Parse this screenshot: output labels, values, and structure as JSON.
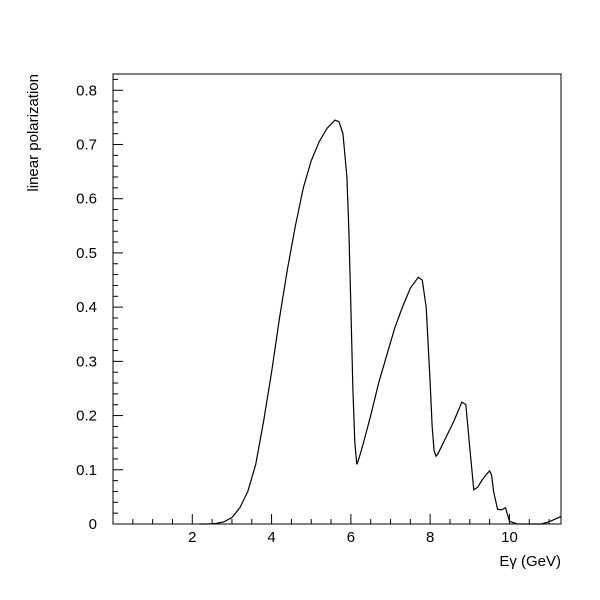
{
  "chart_data": {
    "type": "line",
    "xlabel": "Eγ (GeV)",
    "ylabel": "linear polarization",
    "xlim": [
      0,
      11.3
    ],
    "ylim": [
      0,
      0.83
    ],
    "x_ticks": [
      2,
      4,
      6,
      8,
      10
    ],
    "y_ticks": [
      0,
      0.1,
      0.2,
      0.3,
      0.4,
      0.5,
      0.6,
      0.7,
      0.8
    ],
    "grid": false,
    "series": [
      {
        "x": [
          2.2,
          2.4,
          2.6,
          2.8,
          3.0,
          3.2,
          3.4,
          3.6,
          3.8,
          4.0,
          4.2,
          4.4,
          4.6,
          4.8,
          5.0,
          5.2,
          5.4,
          5.6,
          5.7,
          5.8,
          5.9,
          5.95,
          6.0,
          6.05,
          6.1,
          6.15,
          6.2,
          6.3,
          6.5,
          6.7,
          6.9,
          7.1,
          7.3,
          7.5,
          7.7,
          7.8,
          7.9,
          8.0,
          8.05,
          8.1,
          8.15,
          8.2,
          8.4,
          8.6,
          8.8,
          8.9,
          9.0,
          9.1,
          9.2,
          9.3,
          9.4,
          9.5,
          9.55,
          9.6,
          9.7,
          9.8,
          9.9,
          10.0,
          10.2,
          10.5,
          10.8,
          11.0,
          11.3
        ],
        "y": [
          0.0,
          0.0,
          0.001,
          0.004,
          0.012,
          0.03,
          0.06,
          0.11,
          0.19,
          0.28,
          0.38,
          0.47,
          0.55,
          0.62,
          0.67,
          0.705,
          0.73,
          0.745,
          0.742,
          0.72,
          0.64,
          0.54,
          0.4,
          0.25,
          0.15,
          0.11,
          0.12,
          0.145,
          0.2,
          0.26,
          0.31,
          0.36,
          0.4,
          0.435,
          0.455,
          0.45,
          0.4,
          0.26,
          0.18,
          0.135,
          0.125,
          0.13,
          0.16,
          0.19,
          0.225,
          0.22,
          0.14,
          0.063,
          0.068,
          0.08,
          0.09,
          0.098,
          0.09,
          0.06,
          0.027,
          0.026,
          0.03,
          0.005,
          0.0,
          0.0,
          0.0,
          0.004,
          0.014
        ]
      }
    ]
  }
}
